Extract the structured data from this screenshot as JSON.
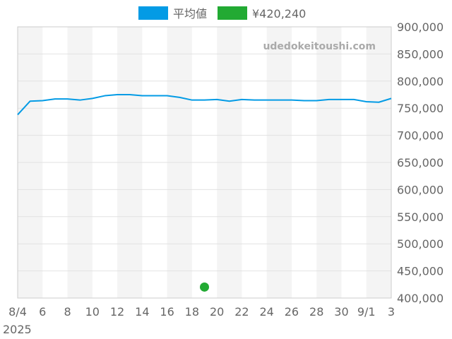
{
  "chart_data": {
    "type": "line",
    "watermark": "udedokeitoushi.com",
    "x_axis": {
      "range": [
        "2025-08-04",
        "2025-09-03"
      ],
      "tick_labels": [
        "8/4",
        "6",
        "8",
        "10",
        "12",
        "14",
        "16",
        "18",
        "20",
        "22",
        "24",
        "26",
        "28",
        "30",
        "9/1",
        "3"
      ],
      "year_label": "2025"
    },
    "y_axis": {
      "position": "right",
      "range": [
        400000,
        900000
      ],
      "step": 50000,
      "tick_labels": [
        "900,000",
        "850,000",
        "800,000",
        "750,000",
        "700,000",
        "650,000",
        "600,000",
        "550,000",
        "500,000",
        "450,000",
        "400,000"
      ]
    },
    "grid": true,
    "legend_position": "top-center",
    "series": [
      {
        "name": "平均値",
        "kind": "line",
        "color": "#039be5",
        "x": [
          "2025-08-04",
          "2025-08-05",
          "2025-08-06",
          "2025-08-07",
          "2025-08-08",
          "2025-08-09",
          "2025-08-10",
          "2025-08-11",
          "2025-08-12",
          "2025-08-13",
          "2025-08-14",
          "2025-08-15",
          "2025-08-16",
          "2025-08-17",
          "2025-08-18",
          "2025-08-19",
          "2025-08-20",
          "2025-08-21",
          "2025-08-22",
          "2025-08-23",
          "2025-08-24",
          "2025-08-25",
          "2025-08-26",
          "2025-08-27",
          "2025-08-28",
          "2025-08-29",
          "2025-08-30",
          "2025-08-31",
          "2025-09-01",
          "2025-09-02",
          "2025-09-03"
        ],
        "y": [
          738000,
          763000,
          764000,
          767000,
          767000,
          765000,
          768000,
          773000,
          775000,
          775000,
          773000,
          773000,
          773000,
          770000,
          765000,
          765000,
          766000,
          763000,
          766000,
          765000,
          765000,
          765000,
          765000,
          764000,
          764000,
          766000,
          766000,
          766000,
          762000,
          761000,
          768000
        ]
      },
      {
        "name": "¥420,240",
        "kind": "scatter",
        "color": "#22aa33",
        "x": [
          "2025-08-19"
        ],
        "y": [
          420240
        ]
      }
    ]
  }
}
